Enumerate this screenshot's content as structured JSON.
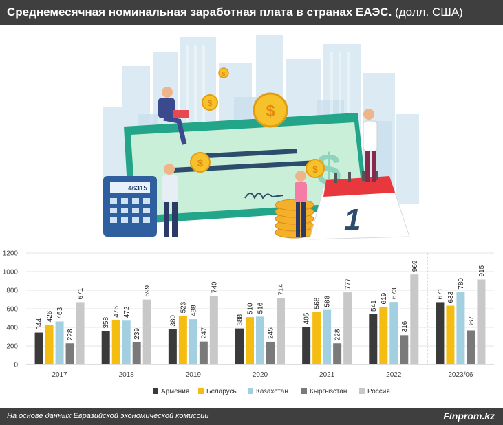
{
  "header": {
    "title": "Среднемесячная номинальная заработная плата в странах ЕАЭС.",
    "unit": "(долл. США)"
  },
  "illustration": {
    "calculator_display": "46315",
    "calendar_day": "1",
    "coin_symbol": "$"
  },
  "footer": {
    "source": "На основе данных Евразийской экономической комиссии",
    "brand": "Finprom.kz"
  },
  "chart_data": {
    "type": "bar",
    "categories": [
      "2017",
      "2018",
      "2019",
      "2020",
      "2021",
      "2022",
      "2023/06"
    ],
    "series": [
      {
        "name": "Армения",
        "color": "#3a3a3a",
        "values": [
          344,
          358,
          380,
          388,
          405,
          541,
          671
        ]
      },
      {
        "name": "Беларусь",
        "color": "#f5bd12",
        "values": [
          426,
          476,
          523,
          510,
          568,
          619,
          633
        ]
      },
      {
        "name": "Казахстан",
        "color": "#a3d0e1",
        "values": [
          463,
          472,
          488,
          516,
          588,
          673,
          780
        ]
      },
      {
        "name": "Кыргызстан",
        "color": "#7a7a7a",
        "values": [
          228,
          239,
          247,
          245,
          228,
          316,
          367
        ]
      },
      {
        "name": "Россия",
        "color": "#c8c8c8",
        "values": [
          671,
          699,
          740,
          714,
          777,
          969,
          915
        ]
      }
    ],
    "yticks": [
      "0",
      "200",
      "400",
      "600",
      "800",
      "1000",
      "1200"
    ],
    "ylim": [
      0,
      1200
    ],
    "grid": true,
    "legend": "bottom",
    "separator_before": "2023/06"
  }
}
